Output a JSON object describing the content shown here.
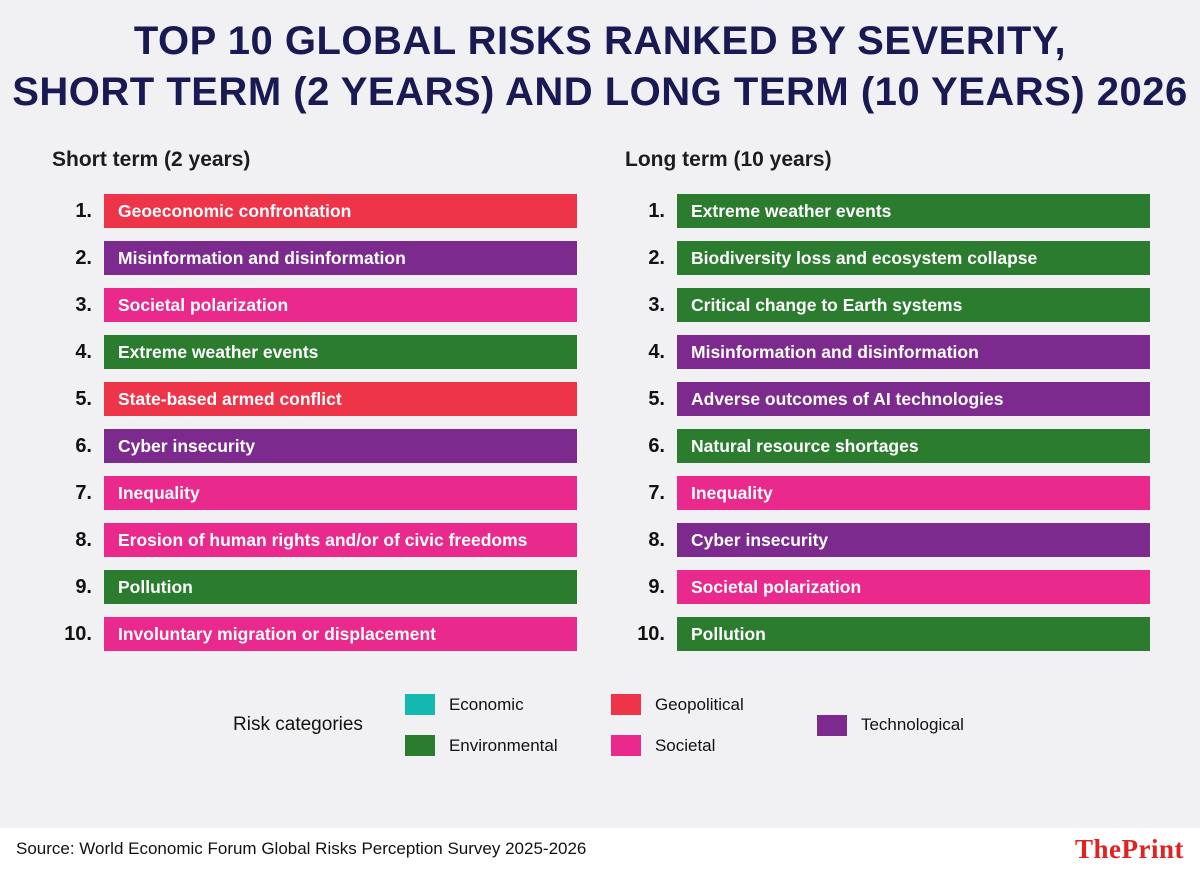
{
  "title": {
    "line1": "TOP 10 GLOBAL RISKS RANKED BY SEVERITY,",
    "line2": "SHORT TERM (2 YEARS) AND LONG TERM (10 YEARS) 2026"
  },
  "colors": {
    "background": "#f1f1f3",
    "title": "#191953",
    "footer_background": "#ffffff",
    "brand": "#e02222"
  },
  "chart_data": {
    "type": "table",
    "title": "Top 10 global risks ranked by severity, short term (2 years) and long term (10 years) 2026",
    "columns": [
      {
        "heading": "Short term (2 years)",
        "items": [
          {
            "rank": "1.",
            "label": "Geoeconomic confrontation",
            "category": "Geopolitical"
          },
          {
            "rank": "2.",
            "label": "Misinformation and disinformation",
            "category": "Technological"
          },
          {
            "rank": "3.",
            "label": "Societal polarization",
            "category": "Societal"
          },
          {
            "rank": "4.",
            "label": "Extreme weather events",
            "category": "Environmental"
          },
          {
            "rank": "5.",
            "label": "State-based armed conflict",
            "category": "Geopolitical"
          },
          {
            "rank": "6.",
            "label": "Cyber insecurity",
            "category": "Technological"
          },
          {
            "rank": "7.",
            "label": "Inequality",
            "category": "Societal"
          },
          {
            "rank": "8.",
            "label": "Erosion of human rights and/or of civic freedoms",
            "category": "Societal"
          },
          {
            "rank": "9.",
            "label": "Pollution",
            "category": "Environmental"
          },
          {
            "rank": "10.",
            "label": "Involuntary migration or displacement",
            "category": "Societal"
          }
        ]
      },
      {
        "heading": "Long term (10 years)",
        "items": [
          {
            "rank": "1.",
            "label": "Extreme weather events",
            "category": "Environmental"
          },
          {
            "rank": "2.",
            "label": "Biodiversity loss and ecosystem collapse",
            "category": "Environmental"
          },
          {
            "rank": "3.",
            "label": "Critical change to Earth systems",
            "category": "Environmental"
          },
          {
            "rank": "4.",
            "label": "Misinformation and disinformation",
            "category": "Technological"
          },
          {
            "rank": "5.",
            "label": "Adverse outcomes of AI technologies",
            "category": "Technological"
          },
          {
            "rank": "6.",
            "label": "Natural resource shortages",
            "category": "Environmental"
          },
          {
            "rank": "7.",
            "label": "Inequality",
            "category": "Societal"
          },
          {
            "rank": "8.",
            "label": "Cyber insecurity",
            "category": "Technological"
          },
          {
            "rank": "9.",
            "label": "Societal polarization",
            "category": "Societal"
          },
          {
            "rank": "10.",
            "label": "Pollution",
            "category": "Environmental"
          }
        ]
      }
    ],
    "legend": {
      "label": "Risk categories",
      "categories": [
        {
          "name": "Economic",
          "color": "#14b8b0"
        },
        {
          "name": "Environmental",
          "color": "#2b7c2f"
        },
        {
          "name": "Geopolitical",
          "color": "#ee3448"
        },
        {
          "name": "Societal",
          "color": "#e92a8c"
        },
        {
          "name": "Technological",
          "color": "#7c2a8d"
        }
      ]
    }
  },
  "footer": {
    "source": "Source: World Economic Forum Global Risks Perception Survey 2025-2026",
    "brand": "ThePrint"
  }
}
